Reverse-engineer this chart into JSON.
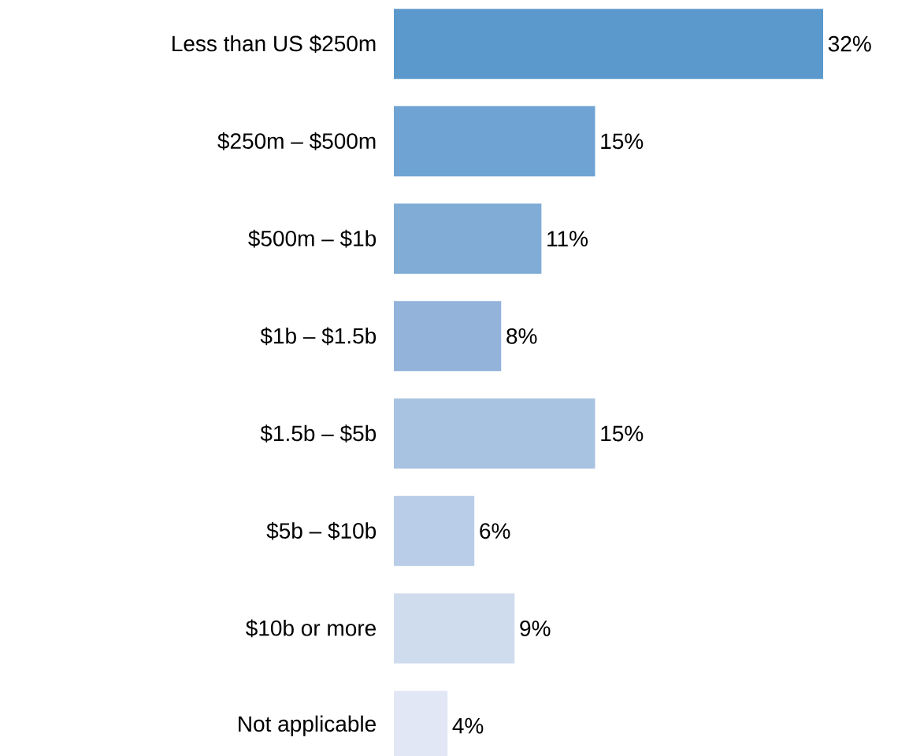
{
  "chart_data": {
    "type": "bar",
    "orientation": "horizontal",
    "categories": [
      "Less than US $250m",
      "$250m – $500m",
      "$500m – $1b",
      "$1b – $1.5b",
      "$1.5b – $5b",
      "$5b – $10b",
      "$10b or more",
      "Not applicable"
    ],
    "values": [
      32,
      15,
      11,
      8,
      15,
      6,
      9,
      4
    ],
    "colors": [
      "#5b99cc",
      "#6ea3d3",
      "#80acd6",
      "#94b3db",
      "#a8c2e1",
      "#b9cde8",
      "#cfdcee",
      "#e2e7f5"
    ],
    "value_labels": [
      "32%",
      "15%",
      "11%",
      "8%",
      "15%",
      "6%",
      "9%",
      "4%"
    ]
  }
}
